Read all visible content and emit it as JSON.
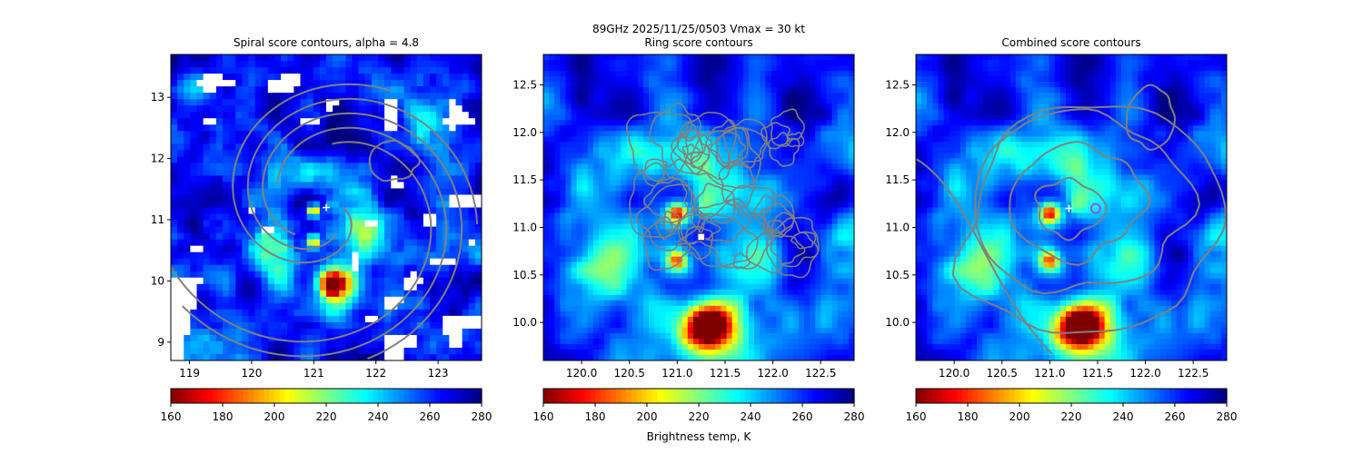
{
  "figure": {
    "suptitle_line1": "89GHz  2025/11/25/0503    Vmax = 30 kt",
    "colorbar_label": "Brightness temp, K",
    "colormap": "jet",
    "colormap_direction": "reversed (low = dark red, high = dark blue)"
  },
  "chart_data": [
    {
      "type": "heatmap",
      "title": "Spiral score contours, alpha =  4.8",
      "xlim": [
        118.7,
        123.7
      ],
      "ylim": [
        8.7,
        13.7
      ],
      "xticks": [
        "119",
        "120",
        "121",
        "122",
        "123"
      ],
      "yticks": [
        "9",
        "10",
        "11",
        "12",
        "13"
      ],
      "colorbar": {
        "vmin": 160,
        "vmax": 280,
        "ticks": [
          "160",
          "180",
          "200",
          "220",
          "240",
          "260",
          "280"
        ]
      },
      "overlay": "grey spiral score contours with white missing-data patches",
      "center_marker": {
        "symbol": "+",
        "color": "#ffffff",
        "x": 121.2,
        "y": 11.2
      }
    },
    {
      "type": "heatmap",
      "title": "Ring score contours",
      "xlim": [
        119.6,
        122.85
      ],
      "ylim": [
        9.6,
        12.82
      ],
      "xticks": [
        "120.0",
        "120.5",
        "121.0",
        "121.5",
        "122.0",
        "122.5"
      ],
      "yticks": [
        "10.0",
        "10.5",
        "11.0",
        "11.5",
        "12.0",
        "12.5"
      ],
      "colorbar": {
        "vmin": 160,
        "vmax": 280,
        "ticks": [
          "160",
          "180",
          "200",
          "220",
          "240",
          "260",
          "280"
        ]
      },
      "overlay": "dense grey ring score contours",
      "center_marker": {
        "symbol": "square",
        "color": "#ffffff",
        "x": 121.25,
        "y": 10.9
      }
    },
    {
      "type": "heatmap",
      "title": "Combined score contours",
      "xlim": [
        119.6,
        122.85
      ],
      "ylim": [
        9.6,
        12.82
      ],
      "xticks": [
        "120.0",
        "120.5",
        "121.0",
        "121.5",
        "122.0",
        "122.5"
      ],
      "yticks": [
        "10.0",
        "10.5",
        "11.0",
        "11.5",
        "12.0",
        "12.5"
      ],
      "colorbar": {
        "vmin": 160,
        "vmax": 280,
        "ticks": [
          "160",
          "180",
          "200",
          "220",
          "240",
          "260",
          "280"
        ]
      },
      "overlay": "grey combined score contours",
      "center_marker": {
        "symbol": "+",
        "color": "#ffffff",
        "x": 121.2,
        "y": 11.2
      },
      "secondary_marker": {
        "symbol": "circle",
        "color": "#b040e0",
        "x": 121.48,
        "y": 11.2
      }
    }
  ]
}
